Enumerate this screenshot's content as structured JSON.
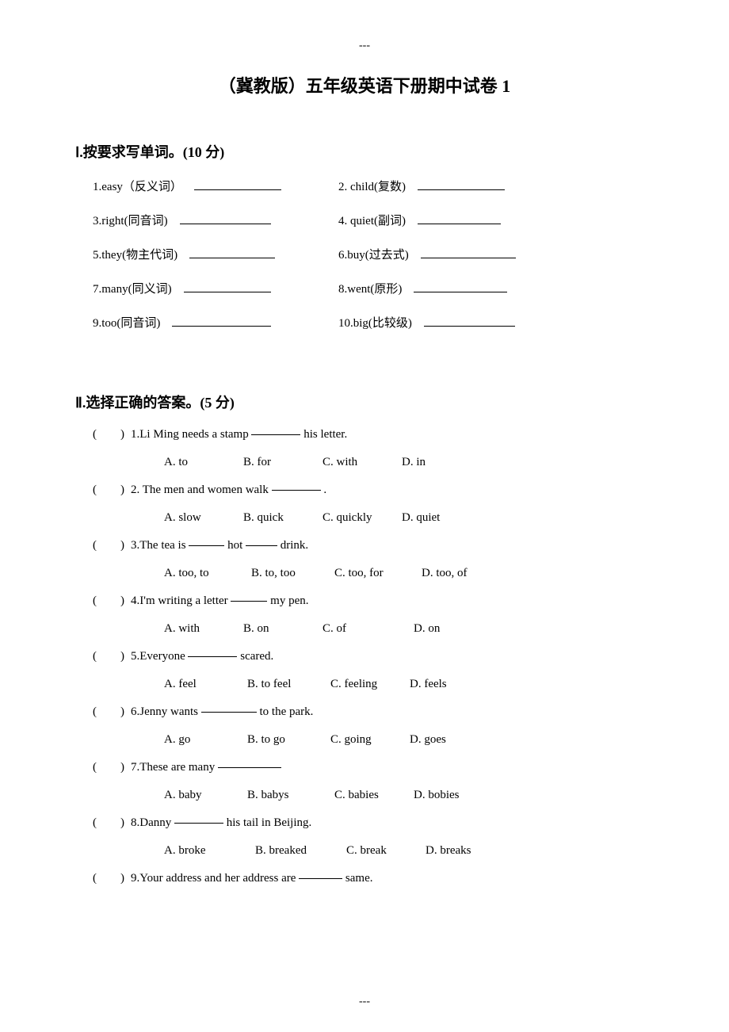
{
  "header_dash": "---",
  "footer_dash": "---",
  "title": "（冀教版）五年级英语下册期中试卷  1",
  "section1": {
    "header": "Ⅰ.按要求写单词。(10 分)",
    "items": [
      {
        "left": "1.easy（反义词）",
        "left_blank_width": 110,
        "right": "2. child(复数)",
        "right_blank_width": 110
      },
      {
        "left": "3.right(同音词)",
        "left_blank_width": 115,
        "right": "4. quiet(副词)",
        "right_blank_width": 105
      },
      {
        "left": "5.they(物主代词)",
        "left_blank_width": 108,
        "right": "6.buy(过去式)",
        "right_blank_width": 120
      },
      {
        "left": "7.many(同义词)",
        "left_blank_width": 110,
        "right": "8.went(原形)",
        "right_blank_width": 118
      },
      {
        "left": "9.too(同音词)",
        "left_blank_width": 125,
        "right": "10.big(比较级)",
        "right_blank_width": 115
      }
    ]
  },
  "section2": {
    "header": "Ⅱ.选择正确的答案。(5 分)",
    "questions": [
      {
        "num": "1",
        "prompt_before": "Li Ming needs a stamp ",
        "blank_width": 62,
        "prompt_after": "  his letter.",
        "options": [
          "A. to",
          "B. for",
          "C. with",
          "D.    in"
        ],
        "opt_widths": [
          100,
          100,
          100,
          80
        ]
      },
      {
        "num": "2",
        "prompt_before": " The men and women walk ",
        "blank_width": 62,
        "prompt_after": " .",
        "options": [
          "A. slow",
          "B. quick",
          "C. quickly",
          "D. quiet"
        ],
        "opt_widths": [
          100,
          100,
          100,
          80
        ]
      },
      {
        "num": "3",
        "prompt_before": "The tea is ",
        "blank_width": 45,
        "prompt_mid": " hot ",
        "blank_width2": 40,
        "prompt_after": " drink.",
        "options": [
          "A. too, to",
          "B. to, too",
          "C. too, for",
          "D. too, of"
        ],
        "opt_widths": [
          110,
          105,
          110,
          80
        ]
      },
      {
        "num": "4",
        "prompt_before": "I'm writing a letter ",
        "blank_width": 46,
        "prompt_after": " my pen.",
        "options": [
          "A. with",
          "B. on",
          "C. of",
          "D. on"
        ],
        "opt_widths": [
          100,
          100,
          115,
          80
        ]
      },
      {
        "num": "5",
        "prompt_before": "Everyone ",
        "blank_width": 62,
        "prompt_after": " scared.",
        "options": [
          "A. feel",
          "B. to feel",
          "C. feeling",
          "D.    feels"
        ],
        "opt_widths": [
          105,
          105,
          100,
          80
        ]
      },
      {
        "num": "6",
        "prompt_before": "Jenny wants ",
        "blank_width": 70,
        "prompt_after": " to the park.",
        "options": [
          "A. go",
          "B. to go",
          "C. going",
          "D.    goes"
        ],
        "opt_widths": [
          105,
          105,
          100,
          80
        ]
      },
      {
        "num": "7",
        "prompt_before": "These are many  ",
        "blank_width": 80,
        "prompt_after": "",
        "options": [
          "A. baby",
          "B. babys",
          "C. babies",
          "D.    bobies"
        ],
        "opt_widths": [
          105,
          110,
          100,
          90
        ]
      },
      {
        "num": "8",
        "prompt_before": "Danny ",
        "blank_width": 62,
        "prompt_after": " his tail in Beijing.",
        "options": [
          "A. broke",
          "B. breaked",
          "C. break",
          "D.    breaks"
        ],
        "opt_widths": [
          115,
          115,
          100,
          90
        ]
      },
      {
        "num": "9",
        "prompt_before": "Your address and her address are ",
        "blank_width": 55,
        "prompt_after": " same.",
        "options": null
      }
    ]
  }
}
